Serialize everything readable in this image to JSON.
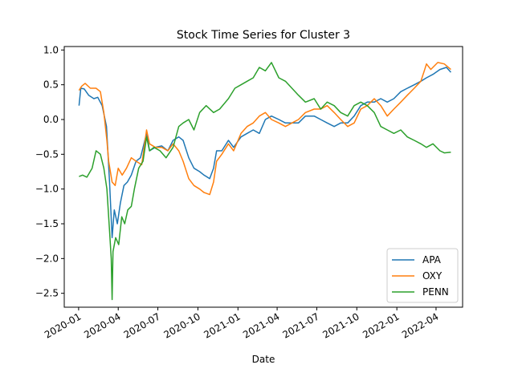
{
  "chart_data": {
    "type": "line",
    "title": "Stock Time Series for Cluster 3",
    "xlabel": "Date",
    "ylabel": "",
    "x_ticks": [
      "2020-01",
      "2020-04",
      "2020-07",
      "2020-10",
      "2021-01",
      "2021-04",
      "2021-07",
      "2021-10",
      "2022-01",
      "2022-04"
    ],
    "y_ticks": [
      "1.0",
      "0.5",
      "0.0",
      "−0.5",
      "−1.0",
      "−1.5",
      "−2.0",
      "−2.5"
    ],
    "y_tick_values": [
      1.0,
      0.5,
      0.0,
      -0.5,
      -1.0,
      -1.5,
      -2.0,
      -2.5
    ],
    "xlim": [
      "2019-11-29",
      "2022-06-01"
    ],
    "ylim": [
      -2.7,
      1.05
    ],
    "grid": false,
    "legend_position": "lower right",
    "series": [
      {
        "name": "APA",
        "color": "#1f77b4",
        "points": [
          [
            "2020-01-02",
            0.2
          ],
          [
            "2020-01-06",
            0.45
          ],
          [
            "2020-01-14",
            0.44
          ],
          [
            "2020-01-24",
            0.35
          ],
          [
            "2020-02-05",
            0.3
          ],
          [
            "2020-02-14",
            0.32
          ],
          [
            "2020-02-24",
            0.2
          ],
          [
            "2020-03-05",
            -0.1
          ],
          [
            "2020-03-12",
            -0.9
          ],
          [
            "2020-03-18",
            -1.7
          ],
          [
            "2020-03-23",
            -1.3
          ],
          [
            "2020-03-30",
            -1.5
          ],
          [
            "2020-04-06",
            -1.2
          ],
          [
            "2020-04-14",
            -0.95
          ],
          [
            "2020-04-22",
            -0.9
          ],
          [
            "2020-05-01",
            -0.8
          ],
          [
            "2020-05-12",
            -0.6
          ],
          [
            "2020-05-22",
            -0.55
          ],
          [
            "2020-06-05",
            -0.2
          ],
          [
            "2020-06-12",
            -0.45
          ],
          [
            "2020-06-25",
            -0.4
          ],
          [
            "2020-07-10",
            -0.38
          ],
          [
            "2020-07-24",
            -0.45
          ],
          [
            "2020-08-05",
            -0.3
          ],
          [
            "2020-08-18",
            -0.25
          ],
          [
            "2020-08-28",
            -0.3
          ],
          [
            "2020-09-10",
            -0.55
          ],
          [
            "2020-09-22",
            -0.7
          ],
          [
            "2020-10-05",
            -0.75
          ],
          [
            "2020-10-15",
            -0.8
          ],
          [
            "2020-10-28",
            -0.85
          ],
          [
            "2020-11-06",
            -0.7
          ],
          [
            "2020-11-13",
            -0.45
          ],
          [
            "2020-11-25",
            -0.45
          ],
          [
            "2020-12-10",
            -0.3
          ],
          [
            "2020-12-22",
            -0.4
          ],
          [
            "2021-01-08",
            -0.25
          ],
          [
            "2021-01-22",
            -0.2
          ],
          [
            "2021-02-05",
            -0.15
          ],
          [
            "2021-02-19",
            -0.2
          ],
          [
            "2021-03-05",
            0.0
          ],
          [
            "2021-03-19",
            0.05
          ],
          [
            "2021-04-05",
            0.0
          ],
          [
            "2021-04-20",
            -0.05
          ],
          [
            "2021-05-05",
            -0.05
          ],
          [
            "2021-05-20",
            -0.05
          ],
          [
            "2021-06-05",
            0.05
          ],
          [
            "2021-06-25",
            0.05
          ],
          [
            "2021-07-10",
            0.0
          ],
          [
            "2021-07-25",
            -0.05
          ],
          [
            "2021-08-10",
            -0.1
          ],
          [
            "2021-08-25",
            -0.05
          ],
          [
            "2021-09-10",
            -0.05
          ],
          [
            "2021-09-25",
            0.05
          ],
          [
            "2021-10-10",
            0.2
          ],
          [
            "2021-10-25",
            0.25
          ],
          [
            "2021-11-10",
            0.25
          ],
          [
            "2021-11-25",
            0.3
          ],
          [
            "2021-12-10",
            0.25
          ],
          [
            "2021-12-25",
            0.3
          ],
          [
            "2022-01-10",
            0.4
          ],
          [
            "2022-01-25",
            0.45
          ],
          [
            "2022-02-10",
            0.5
          ],
          [
            "2022-02-25",
            0.55
          ],
          [
            "2022-03-10",
            0.6
          ],
          [
            "2022-03-25",
            0.65
          ],
          [
            "2022-04-10",
            0.72
          ],
          [
            "2022-04-25",
            0.75
          ],
          [
            "2022-05-05",
            0.68
          ]
        ]
      },
      {
        "name": "OXY",
        "color": "#ff7f0e",
        "points": [
          [
            "2020-01-02",
            0.42
          ],
          [
            "2020-01-08",
            0.48
          ],
          [
            "2020-01-16",
            0.52
          ],
          [
            "2020-01-28",
            0.45
          ],
          [
            "2020-02-10",
            0.45
          ],
          [
            "2020-02-20",
            0.4
          ],
          [
            "2020-02-28",
            0.1
          ],
          [
            "2020-03-06",
            -0.3
          ],
          [
            "2020-03-10",
            -0.6
          ],
          [
            "2020-03-18",
            -0.9
          ],
          [
            "2020-03-25",
            -0.95
          ],
          [
            "2020-04-01",
            -0.7
          ],
          [
            "2020-04-10",
            -0.8
          ],
          [
            "2020-04-20",
            -0.7
          ],
          [
            "2020-05-01",
            -0.55
          ],
          [
            "2020-05-12",
            -0.6
          ],
          [
            "2020-05-25",
            -0.65
          ],
          [
            "2020-06-05",
            -0.15
          ],
          [
            "2020-06-12",
            -0.35
          ],
          [
            "2020-06-25",
            -0.4
          ],
          [
            "2020-07-10",
            -0.4
          ],
          [
            "2020-07-24",
            -0.45
          ],
          [
            "2020-08-05",
            -0.35
          ],
          [
            "2020-08-18",
            -0.45
          ],
          [
            "2020-08-28",
            -0.6
          ],
          [
            "2020-09-10",
            -0.85
          ],
          [
            "2020-09-22",
            -0.95
          ],
          [
            "2020-10-05",
            -1.0
          ],
          [
            "2020-10-15",
            -1.05
          ],
          [
            "2020-10-28",
            -1.08
          ],
          [
            "2020-11-06",
            -0.9
          ],
          [
            "2020-11-13",
            -0.6
          ],
          [
            "2020-11-25",
            -0.5
          ],
          [
            "2020-12-10",
            -0.35
          ],
          [
            "2020-12-22",
            -0.45
          ],
          [
            "2021-01-08",
            -0.2
          ],
          [
            "2021-01-22",
            -0.1
          ],
          [
            "2021-02-05",
            -0.05
          ],
          [
            "2021-02-19",
            0.05
          ],
          [
            "2021-03-05",
            0.1
          ],
          [
            "2021-03-19",
            0.0
          ],
          [
            "2021-04-05",
            -0.05
          ],
          [
            "2021-04-20",
            -0.1
          ],
          [
            "2021-05-05",
            -0.05
          ],
          [
            "2021-05-20",
            0.0
          ],
          [
            "2021-06-05",
            0.1
          ],
          [
            "2021-06-25",
            0.15
          ],
          [
            "2021-07-10",
            0.15
          ],
          [
            "2021-07-25",
            0.2
          ],
          [
            "2021-08-10",
            0.1
          ],
          [
            "2021-08-25",
            0.0
          ],
          [
            "2021-09-10",
            -0.1
          ],
          [
            "2021-09-25",
            -0.05
          ],
          [
            "2021-10-10",
            0.15
          ],
          [
            "2021-10-25",
            0.2
          ],
          [
            "2021-11-10",
            0.3
          ],
          [
            "2021-11-25",
            0.2
          ],
          [
            "2021-12-10",
            0.05
          ],
          [
            "2021-12-25",
            0.15
          ],
          [
            "2022-01-10",
            0.25
          ],
          [
            "2022-01-25",
            0.35
          ],
          [
            "2022-02-10",
            0.45
          ],
          [
            "2022-02-25",
            0.55
          ],
          [
            "2022-03-05",
            0.7
          ],
          [
            "2022-03-10",
            0.8
          ],
          [
            "2022-03-20",
            0.72
          ],
          [
            "2022-04-05",
            0.82
          ],
          [
            "2022-04-20",
            0.8
          ],
          [
            "2022-05-05",
            0.72
          ]
        ]
      },
      {
        "name": "PENN",
        "color": "#2ca02c",
        "points": [
          [
            "2020-01-02",
            -0.82
          ],
          [
            "2020-01-10",
            -0.8
          ],
          [
            "2020-01-20",
            -0.83
          ],
          [
            "2020-02-01",
            -0.7
          ],
          [
            "2020-02-10",
            -0.45
          ],
          [
            "2020-02-20",
            -0.5
          ],
          [
            "2020-02-28",
            -0.7
          ],
          [
            "2020-03-06",
            -1.0
          ],
          [
            "2020-03-12",
            -1.6
          ],
          [
            "2020-03-16",
            -2.0
          ],
          [
            "2020-03-18",
            -2.59
          ],
          [
            "2020-03-20",
            -1.9
          ],
          [
            "2020-03-26",
            -1.7
          ],
          [
            "2020-04-02",
            -1.8
          ],
          [
            "2020-04-09",
            -1.4
          ],
          [
            "2020-04-16",
            -1.5
          ],
          [
            "2020-04-23",
            -1.3
          ],
          [
            "2020-05-01",
            -1.25
          ],
          [
            "2020-05-08",
            -1.0
          ],
          [
            "2020-05-18",
            -0.7
          ],
          [
            "2020-05-28",
            -0.6
          ],
          [
            "2020-06-05",
            -0.25
          ],
          [
            "2020-06-12",
            -0.45
          ],
          [
            "2020-06-22",
            -0.4
          ],
          [
            "2020-07-06",
            -0.45
          ],
          [
            "2020-07-20",
            -0.55
          ],
          [
            "2020-08-05",
            -0.4
          ],
          [
            "2020-08-18",
            -0.1
          ],
          [
            "2020-08-28",
            -0.05
          ],
          [
            "2020-09-10",
            0.0
          ],
          [
            "2020-09-22",
            -0.15
          ],
          [
            "2020-10-05",
            0.1
          ],
          [
            "2020-10-20",
            0.2
          ],
          [
            "2020-11-06",
            0.1
          ],
          [
            "2020-11-20",
            0.15
          ],
          [
            "2020-12-10",
            0.3
          ],
          [
            "2020-12-25",
            0.45
          ],
          [
            "2021-01-08",
            0.5
          ],
          [
            "2021-01-22",
            0.55
          ],
          [
            "2021-02-05",
            0.6
          ],
          [
            "2021-02-19",
            0.75
          ],
          [
            "2021-03-05",
            0.7
          ],
          [
            "2021-03-19",
            0.82
          ],
          [
            "2021-04-05",
            0.6
          ],
          [
            "2021-04-20",
            0.55
          ],
          [
            "2021-05-05",
            0.45
          ],
          [
            "2021-05-20",
            0.35
          ],
          [
            "2021-06-05",
            0.25
          ],
          [
            "2021-06-25",
            0.3
          ],
          [
            "2021-07-10",
            0.15
          ],
          [
            "2021-07-25",
            0.25
          ],
          [
            "2021-08-10",
            0.2
          ],
          [
            "2021-08-25",
            0.1
          ],
          [
            "2021-09-10",
            0.05
          ],
          [
            "2021-09-25",
            0.2
          ],
          [
            "2021-10-10",
            0.25
          ],
          [
            "2021-10-25",
            0.2
          ],
          [
            "2021-11-10",
            0.1
          ],
          [
            "2021-11-25",
            -0.1
          ],
          [
            "2021-12-10",
            -0.15
          ],
          [
            "2021-12-25",
            -0.2
          ],
          [
            "2022-01-10",
            -0.15
          ],
          [
            "2022-01-25",
            -0.25
          ],
          [
            "2022-02-10",
            -0.3
          ],
          [
            "2022-02-25",
            -0.35
          ],
          [
            "2022-03-10",
            -0.4
          ],
          [
            "2022-03-25",
            -0.35
          ],
          [
            "2022-04-10",
            -0.45
          ],
          [
            "2022-04-20",
            -0.48
          ],
          [
            "2022-05-05",
            -0.47
          ]
        ]
      }
    ]
  }
}
